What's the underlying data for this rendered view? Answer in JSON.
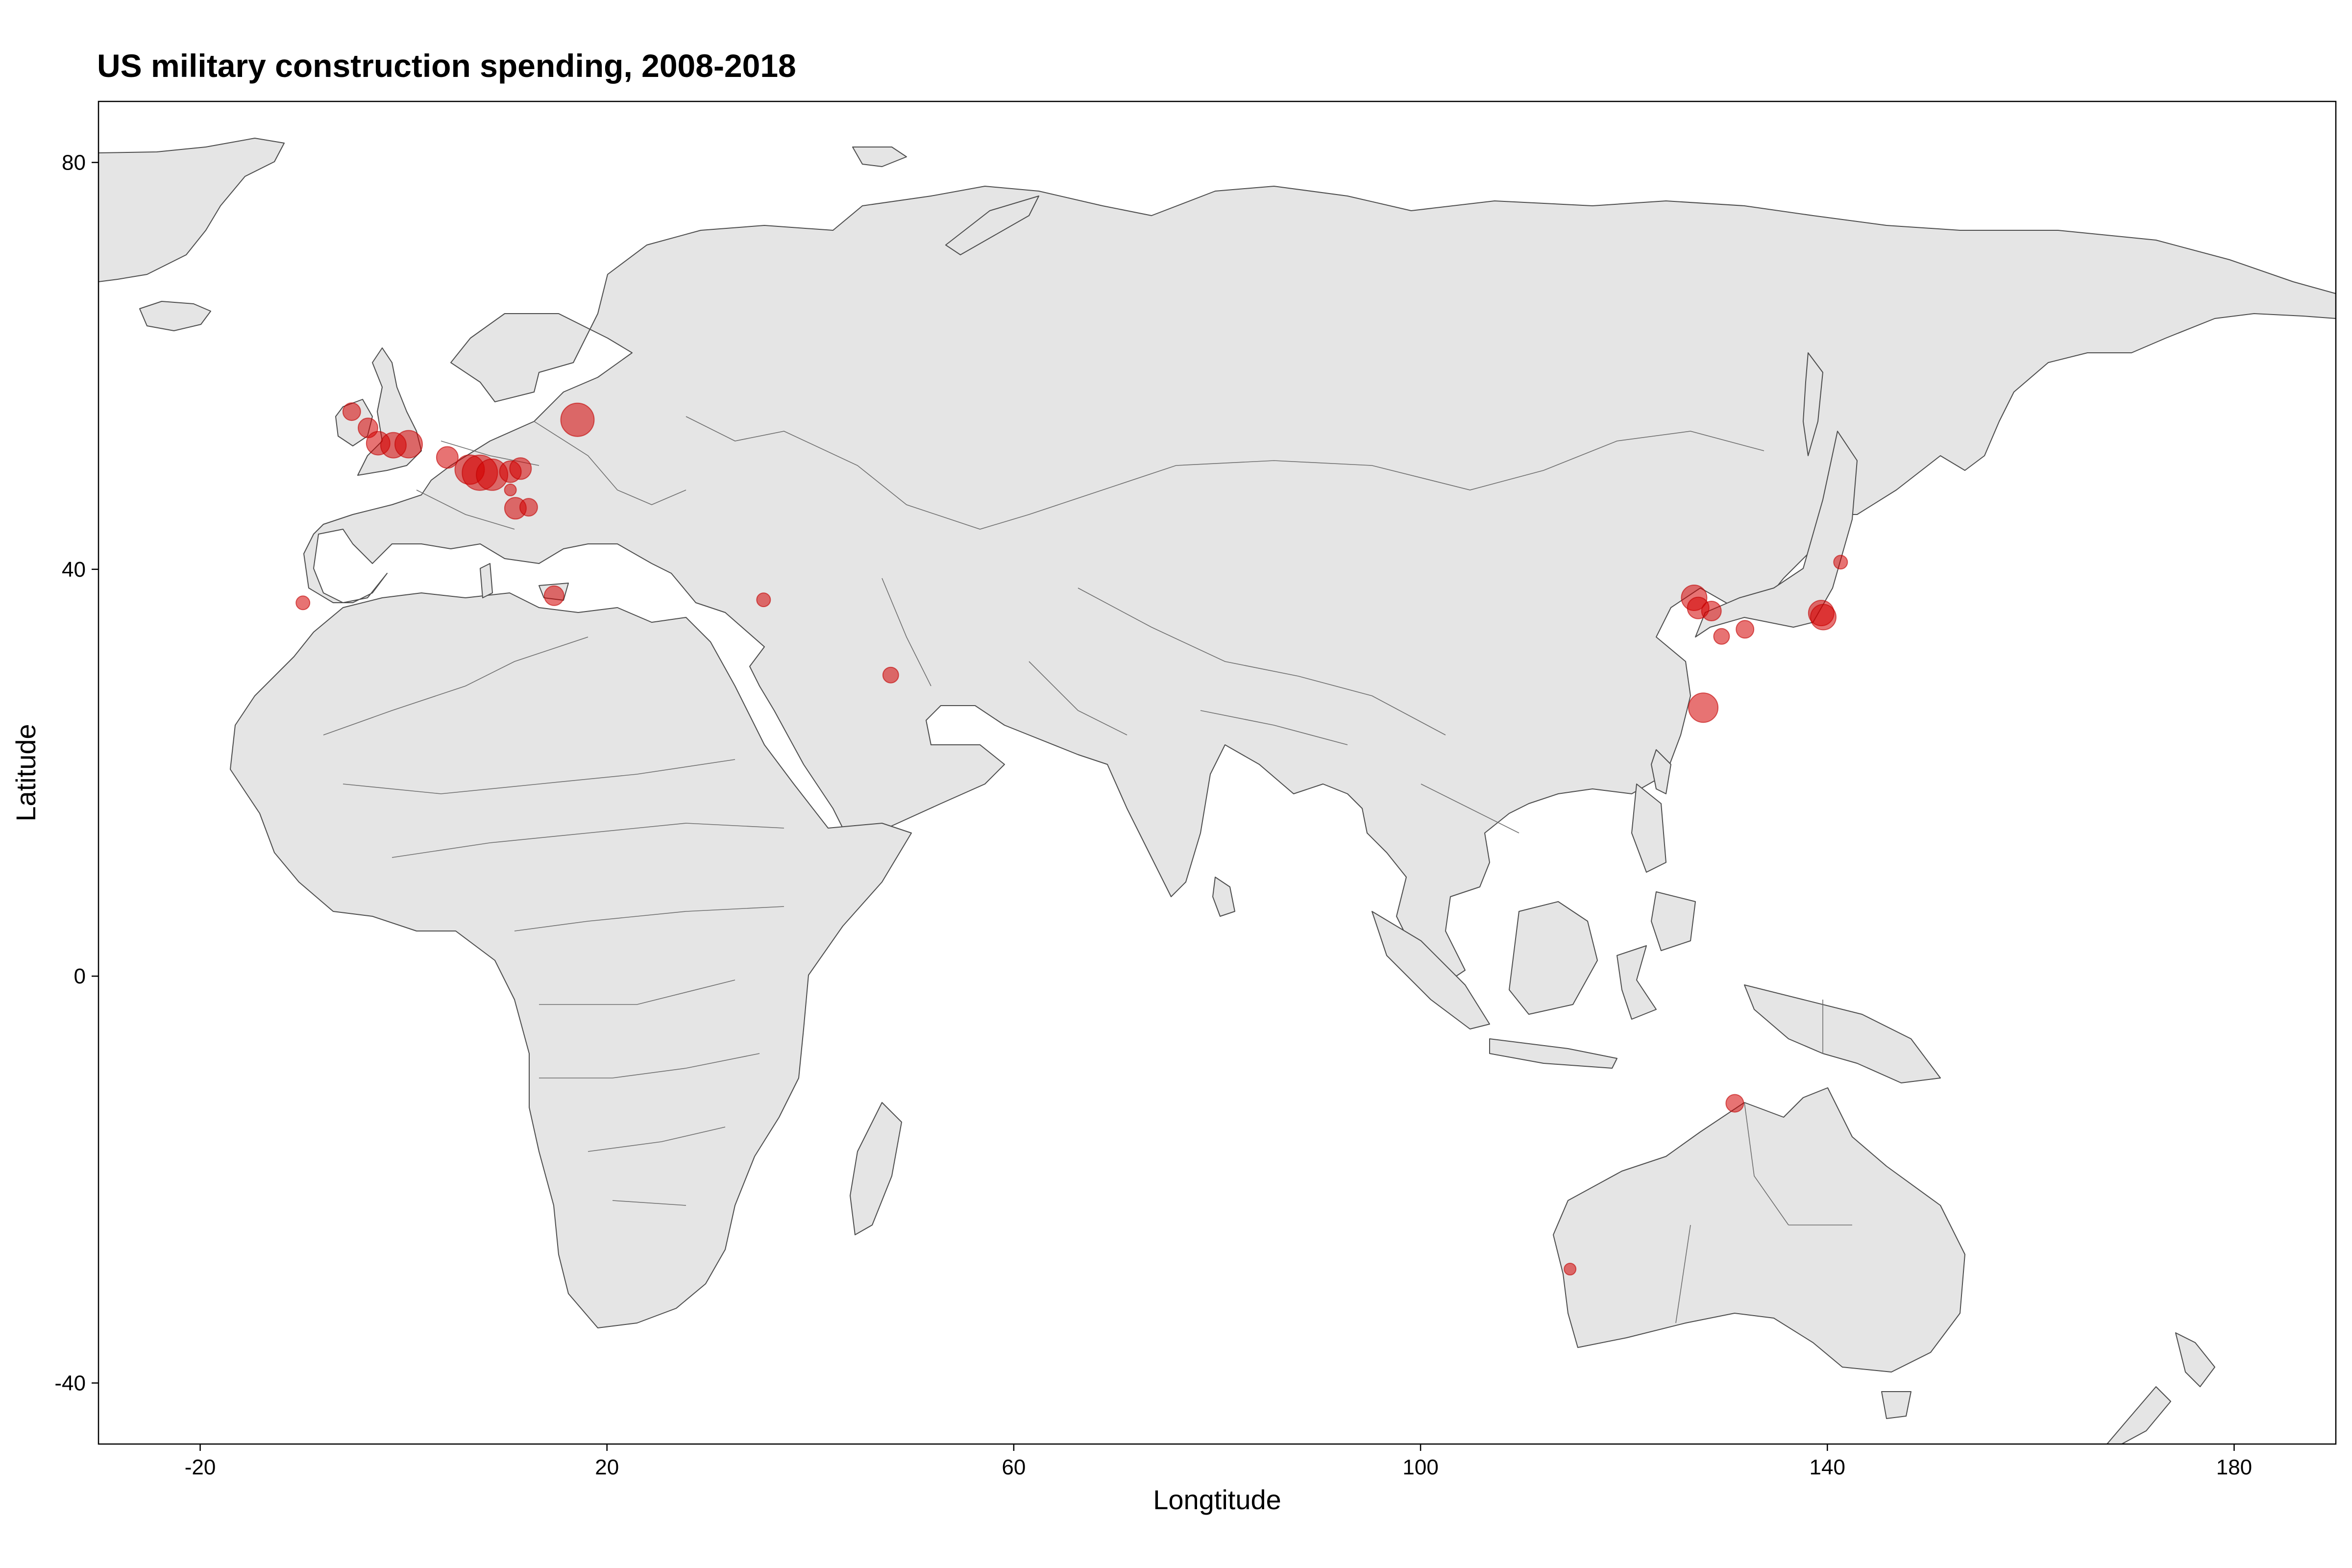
{
  "title": "US military construction spending, 2008-2018",
  "xlabel": "Longtitude",
  "ylabel": "Latitude",
  "x_ticks": [
    -20,
    20,
    60,
    100,
    140,
    180
  ],
  "y_ticks": [
    80,
    40,
    0,
    -40
  ],
  "x_range": [
    -30,
    190
  ],
  "y_range": [
    -46,
    86
  ],
  "colors": {
    "land": "#e5e5e5",
    "land_outline": "#4d4d4d",
    "marker": "#d40000",
    "background": "#ffffff"
  },
  "sites": [
    {
      "name": "site",
      "lon": -5.1,
      "lat": 55.5,
      "r": 18
    },
    {
      "name": "site",
      "lon": -3.5,
      "lat": 53.9,
      "r": 20
    },
    {
      "name": "site",
      "lon": -2.5,
      "lat": 52.4,
      "r": 24
    },
    {
      "name": "site",
      "lon": -1.0,
      "lat": 52.2,
      "r": 26
    },
    {
      "name": "site",
      "lon": 0.5,
      "lat": 52.3,
      "r": 28
    },
    {
      "name": "site",
      "lon": 4.3,
      "lat": 51.0,
      "r": 22
    },
    {
      "name": "site",
      "lon": 6.5,
      "lat": 49.8,
      "r": 30
    },
    {
      "name": "site",
      "lon": 7.5,
      "lat": 49.5,
      "r": 36
    },
    {
      "name": "site",
      "lon": 8.7,
      "lat": 49.3,
      "r": 32
    },
    {
      "name": "site",
      "lon": 10.5,
      "lat": 49.6,
      "r": 22
    },
    {
      "name": "site",
      "lon": 11.5,
      "lat": 49.9,
      "r": 22
    },
    {
      "name": "site",
      "lon": 10.5,
      "lat": 47.8,
      "r": 12
    },
    {
      "name": "site",
      "lon": 11.0,
      "lat": 46.0,
      "r": 22
    },
    {
      "name": "site",
      "lon": 12.3,
      "lat": 46.1,
      "r": 18
    },
    {
      "name": "site",
      "lon": 17.1,
      "lat": 54.7,
      "r": 34
    },
    {
      "name": "site",
      "lon": 14.8,
      "lat": 37.4,
      "r": 20
    },
    {
      "name": "site",
      "lon": -9.9,
      "lat": 36.7,
      "r": 14
    },
    {
      "name": "site",
      "lon": 35.4,
      "lat": 37.0,
      "r": 14
    },
    {
      "name": "site",
      "lon": 47.9,
      "lat": 29.6,
      "r": 16
    },
    {
      "name": "site",
      "lon": 126.9,
      "lat": 37.2,
      "r": 26
    },
    {
      "name": "site",
      "lon": 127.3,
      "lat": 36.2,
      "r": 22
    },
    {
      "name": "site",
      "lon": 128.6,
      "lat": 35.9,
      "r": 20
    },
    {
      "name": "site",
      "lon": 129.6,
      "lat": 33.4,
      "r": 16
    },
    {
      "name": "site",
      "lon": 131.9,
      "lat": 34.1,
      "r": 18
    },
    {
      "name": "site",
      "lon": 139.4,
      "lat": 35.7,
      "r": 26
    },
    {
      "name": "site",
      "lon": 139.6,
      "lat": 35.3,
      "r": 26
    },
    {
      "name": "site",
      "lon": 141.3,
      "lat": 40.7,
      "r": 14
    },
    {
      "name": "site",
      "lon": 127.8,
      "lat": 26.4,
      "r": 30
    },
    {
      "name": "site",
      "lon": 130.9,
      "lat": -12.5,
      "r": 18
    },
    {
      "name": "site",
      "lon": 114.7,
      "lat": -28.8,
      "r": 12
    }
  ]
}
